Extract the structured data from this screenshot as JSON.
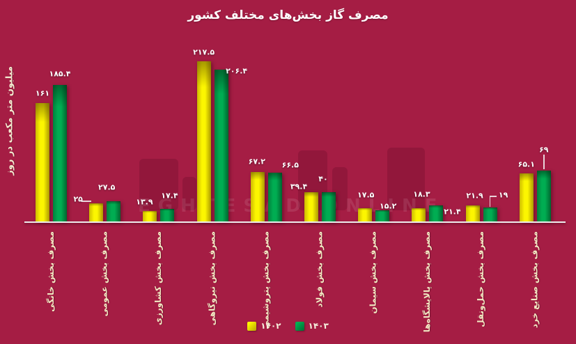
{
  "chart_data": {
    "type": "bar",
    "title": "مصرف گاز بخش‌های مختلف کشور",
    "ylabel": "میلیون متر مکعب در روز",
    "xlabel": "",
    "categories": [
      "مصرف بخش خانگی",
      "مصرف بخش عمومی",
      "مصرف بخش کشاورزی",
      "مصرف بخش نیروگاهی",
      "مصرف بخش پتروشیمی",
      "مصرف بخش فولاد",
      "مصرف بخش سیمان",
      "مصرف بخش پالایشگاه‌ها",
      "مصرف بخش حمل‌ونقل",
      "مصرف بخش صنایع خرد"
    ],
    "series": [
      {
        "name": "۱۴۰۲",
        "color": "#f7ef00",
        "values": [
          161,
          25,
          13.9,
          217.5,
          67.2,
          39.4,
          17.5,
          18.3,
          21.9,
          65.1
        ],
        "value_labels": [
          "۱۶۱",
          "۲۵",
          "۱۳.۹",
          "۲۱۷.۵",
          "۶۷.۲",
          "۳۹.۴",
          "۱۷.۵",
          "۱۸.۳",
          "۲۱.۹",
          "۶۵.۱"
        ]
      },
      {
        "name": "۱۴۰۳",
        "color": "#00a84f",
        "values": [
          185.4,
          27.5,
          17.4,
          206.4,
          66.5,
          40,
          15.2,
          21.4,
          19,
          69
        ],
        "value_labels": [
          "۱۸۵.۴",
          "۲۷.۵",
          "۱۷.۴",
          "۲۰۶.۴",
          "۶۶.۵",
          "۴۰",
          "۱۵.۲",
          "۲۱.۴",
          "۱۹",
          "۶۹"
        ]
      }
    ],
    "ylim": [
      0,
      230
    ],
    "grid": false,
    "legend_position": "bottom-center"
  },
  "watermark": {
    "latin_text": "EGHTESAD ONLINE"
  },
  "colors": {
    "background": "#a51d44",
    "bar_1402": "#f7ef00",
    "bar_1403": "#00a84f",
    "axis_line": "#ededed",
    "category_label": "#f3e7c2",
    "value_label": "#ffffff",
    "title": "#ffffff"
  }
}
